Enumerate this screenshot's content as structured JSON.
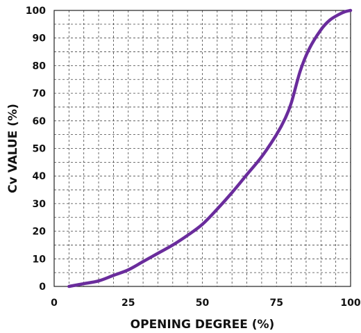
{
  "chart_data": {
    "type": "line",
    "title": "",
    "xlabel": "OPENING DEGREE (%)",
    "ylabel": "Cv VALUE (%)",
    "xlim": [
      0,
      100
    ],
    "ylim": [
      0,
      100
    ],
    "x_ticks": [
      0,
      25,
      50,
      75,
      100
    ],
    "y_ticks": [
      0,
      10,
      20,
      30,
      40,
      50,
      60,
      70,
      80,
      90,
      100
    ],
    "x_tick_labels": [
      "0",
      "25",
      "50",
      "75",
      "100"
    ],
    "y_tick_labels": [
      "0",
      "10",
      "20",
      "30",
      "40",
      "50",
      "60",
      "70",
      "80",
      "90",
      "100"
    ],
    "grid": true,
    "grid_minor_step": 5,
    "line_color": "#6a2c9c",
    "series": [
      {
        "name": "",
        "x": [
          5,
          10,
          15,
          20,
          25,
          30,
          35,
          40,
          45,
          50,
          55,
          60,
          65,
          70,
          75,
          78,
          80,
          83,
          86,
          90,
          93,
          96,
          98,
          100
        ],
        "y": [
          0,
          1,
          2,
          4,
          6,
          9,
          12,
          15,
          18.5,
          22.5,
          28,
          34,
          40.5,
          47,
          55,
          61,
          66.5,
          78,
          86,
          93,
          96.5,
          98.5,
          99.5,
          100
        ]
      }
    ]
  }
}
